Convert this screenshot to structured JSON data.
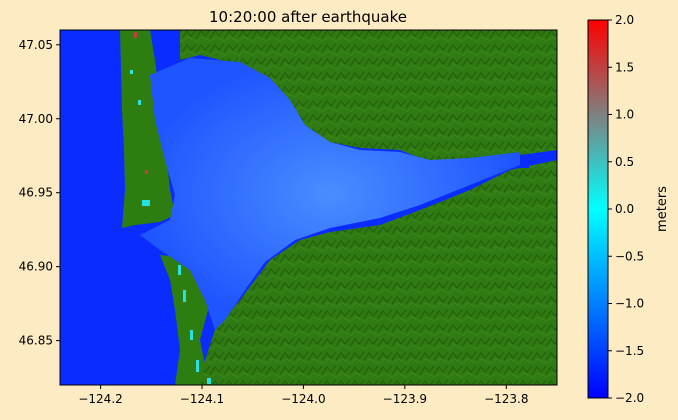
{
  "title": "10:20:00 after earthquake",
  "map": {
    "x_ticks": [
      {
        "value": -124.2,
        "label": "−124.2"
      },
      {
        "value": -124.1,
        "label": "−124.1"
      },
      {
        "value": -124.0,
        "label": "−124.0"
      },
      {
        "value": -123.9,
        "label": "−123.9"
      },
      {
        "value": -123.8,
        "label": "−123.8"
      }
    ],
    "y_ticks": [
      {
        "value": 47.05,
        "label": "47.05"
      },
      {
        "value": 47.0,
        "label": "47.00"
      },
      {
        "value": 46.95,
        "label": "46.95"
      },
      {
        "value": 46.9,
        "label": "46.90"
      },
      {
        "value": 46.85,
        "label": "46.85"
      }
    ],
    "x_range": [
      -124.24,
      -123.75
    ],
    "y_range": [
      46.82,
      47.06
    ],
    "colors": {
      "land": "#2e7d10",
      "land_dark": "#1f5e0a",
      "water_deep": "#0a2cff",
      "water_light": "#2f7bff"
    }
  },
  "colorbar": {
    "label": "meters",
    "range": [
      -2.0,
      2.0
    ],
    "ticks": [
      {
        "value": 2.0,
        "label": "2.0"
      },
      {
        "value": 1.5,
        "label": "1.5"
      },
      {
        "value": 1.0,
        "label": "1.0"
      },
      {
        "value": 0.5,
        "label": "0.5"
      },
      {
        "value": 0.0,
        "label": "0.0"
      },
      {
        "value": -0.5,
        "label": "−0.5"
      },
      {
        "value": -1.0,
        "label": "−1.0"
      },
      {
        "value": -1.5,
        "label": "−1.5"
      },
      {
        "value": -2.0,
        "label": "−2.0"
      }
    ],
    "colors": [
      "#0000ff",
      "#0080ff",
      "#00ffff",
      "#808080",
      "#ff0000"
    ]
  }
}
